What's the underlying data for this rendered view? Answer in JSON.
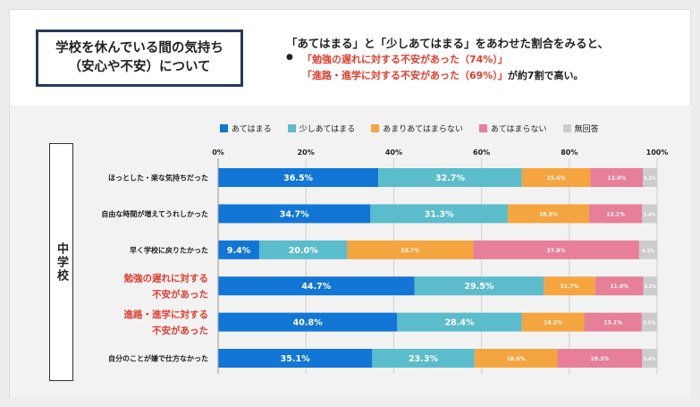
{
  "title_box": {
    "line1": "学校を休んでいる間の気持ち",
    "line2": "（安心や不安）について"
  },
  "summary": {
    "line1": "「あてはまる」と「少しあてはまる」をあわせた割合をみると、",
    "bullet": "●",
    "line2_red": "「勉強の遅れに対する不安があった（74%）」",
    "line3_red": "「進路・進学に対する不安があった（69%）」",
    "line3_tail": "が約7割で高い。"
  },
  "school_label": "中学校",
  "colors": {
    "series": [
      "#1276d6",
      "#5bbccb",
      "#f5a53f",
      "#e77f98",
      "#cccccc"
    ],
    "highlight_label": "#e03c2d",
    "title_border": "#223a5e"
  },
  "chart_data": {
    "type": "bar",
    "orientation": "horizontal",
    "stacked": true,
    "xlim": [
      0,
      100
    ],
    "x_ticks": [
      "0%",
      "20%",
      "40%",
      "60%",
      "80%",
      "100%"
    ],
    "legend_position": "top",
    "categories": [
      "ほっとした・楽な気持ちだった",
      "自由な時間が増えてうれしかった",
      "早く学校に戻りたかった",
      "勉強の遅れに対する不安があった",
      "進路・進学に対する不安があった",
      "自分のことが嫌で仕方なかった"
    ],
    "category_lines": [
      [
        "ほっとした・楽な気持ちだった"
      ],
      [
        "自由な時間が増えてうれしかった"
      ],
      [
        "早く学校に戻りたかった"
      ],
      [
        "勉強の遅れに対する",
        "不安があった"
      ],
      [
        "進路・進学に対する",
        "不安があった"
      ],
      [
        "自分のことが嫌で仕方なかった"
      ]
    ],
    "highlighted": [
      false,
      false,
      false,
      true,
      true,
      false
    ],
    "series": [
      {
        "name": "あてはまる",
        "values": [
          36.5,
          34.7,
          9.4,
          44.7,
          40.8,
          35.1
        ],
        "labels": [
          "36.5%",
          "34.7%",
          "9.4%",
          "44.7%",
          "40.8%",
          "35.1%"
        ]
      },
      {
        "name": "少しあてはまる",
        "values": [
          32.7,
          31.3,
          20.0,
          29.5,
          28.4,
          23.3
        ],
        "labels": [
          "32.7%",
          "31.3%",
          "20.0%",
          "29.5%",
          "28.4%",
          "23.3%"
        ]
      },
      {
        "name": "あまりあてはまらない",
        "values": [
          15.6,
          18.5,
          28.7,
          11.7,
          14.2,
          18.9
        ],
        "labels": [
          "15.6%",
          "18.5%",
          "28.7%",
          "11.7%",
          "14.2%",
          "18.9%"
        ]
      },
      {
        "name": "あてはまらない",
        "values": [
          12.0,
          12.1,
          37.8,
          11.0,
          13.1,
          19.3
        ],
        "labels": [
          "12.0%",
          "12.1%",
          "37.8%",
          "11.0%",
          "13.1%",
          "19.3%"
        ]
      },
      {
        "name": "無回答",
        "values": [
          3.1,
          3.4,
          4.1,
          3.1,
          3.5,
          3.4
        ],
        "labels": [
          "3.1%",
          "3.4%",
          "4.1%",
          "3.1%",
          "3.5%",
          "3.4%"
        ]
      }
    ]
  }
}
